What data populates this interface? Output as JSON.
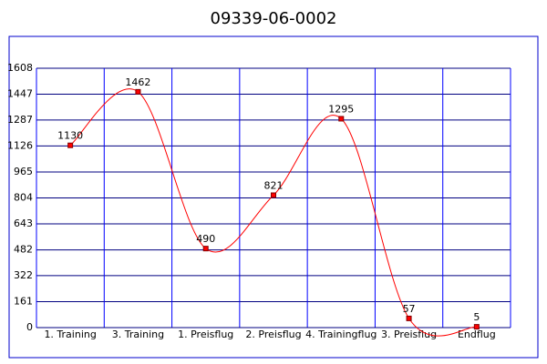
{
  "chart_data": {
    "type": "line",
    "title": "09339-06-0002",
    "categories": [
      "1. Training",
      "3. Training",
      "1. Preisflug",
      "2. Preisflug",
      "4. Trainingflug",
      "3. Preisflug",
      "Endflug"
    ],
    "values": [
      1130,
      1462,
      490,
      821,
      1295,
      57,
      5
    ],
    "color": "#ff0000",
    "ylim": [
      0,
      1608
    ],
    "yticks": [
      0,
      161,
      322,
      482,
      643,
      804,
      965,
      1126,
      1287,
      1447,
      1608
    ],
    "grid": true
  }
}
